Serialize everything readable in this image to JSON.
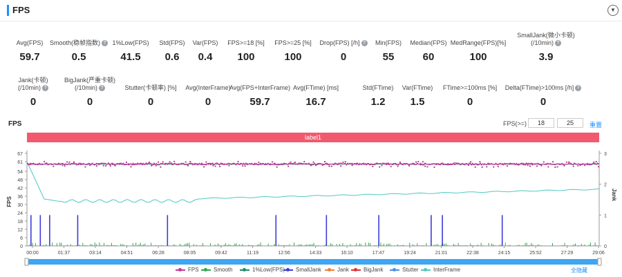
{
  "header": {
    "title": "FPS"
  },
  "metrics_row1": [
    {
      "label": "Avg(FPS)",
      "value": "59.7",
      "help": false
    },
    {
      "label": "Smooth(稳帧指数)",
      "value": "0.5",
      "help": true
    },
    {
      "label": "1%Low(FPS)",
      "value": "41.5",
      "help": false
    },
    {
      "label": "Std(FPS)",
      "value": "0.6",
      "help": false
    },
    {
      "label": "Var(FPS)",
      "value": "0.4",
      "help": false
    },
    {
      "label": "FPS>=18 [%]",
      "value": "100",
      "help": false
    },
    {
      "label": "FPS>=25 [%]",
      "value": "100",
      "help": false
    },
    {
      "label": "Drop(FPS) [/h]",
      "value": "0",
      "help": true
    },
    {
      "label": "Min(FPS)",
      "value": "55",
      "help": false
    },
    {
      "label": "Median(FPS)",
      "value": "60",
      "help": false
    },
    {
      "label": "MedRange(FPS)[%]",
      "value": "100",
      "help": false
    },
    {
      "label": "SmallJank(微小卡顿)",
      "label2": "(/10min)",
      "value": "3.9",
      "help": true
    }
  ],
  "metrics_row2": [
    {
      "label": "Jank(卡顿)",
      "label2": "(/10min)",
      "value": "0",
      "help": true
    },
    {
      "label": "BigJank(严重卡顿)",
      "label2": "(/10min)",
      "value": "0",
      "help": true
    },
    {
      "label": "Stutter(卡顿率) [%]",
      "value": "0",
      "help": false
    },
    {
      "label": "Avg(InterFrame)",
      "value": "0",
      "help": false
    },
    {
      "label": "Avg(FPS+InterFrame)",
      "value": "59.7",
      "help": false
    },
    {
      "label": "Avg(FTime) [ms]",
      "value": "16.7",
      "help": false
    },
    {
      "label": "Std(FTime)",
      "value": "1.2",
      "help": false
    },
    {
      "label": "Var(FTime)",
      "value": "1.5",
      "help": false
    },
    {
      "label": "FTime>=100ms [%]",
      "value": "0",
      "help": false
    },
    {
      "label": "Delta(FTime)>100ms [/h]",
      "value": "0",
      "help": true
    }
  ],
  "chart_controls": {
    "section_label": "FPS",
    "threshold_label": "FPS(>=)",
    "threshold_low": "18",
    "threshold_high": "25",
    "reset_label": "重置",
    "band_label": "label1",
    "hide_all_label": "全隐藏"
  },
  "chart_data": {
    "type": "line",
    "ylabel": "FPS",
    "ylabel_right": "Jank",
    "y_ticks": [
      0,
      6,
      12,
      18,
      24,
      30,
      36,
      42,
      48,
      54,
      61,
      67
    ],
    "y_right_ticks": [
      0,
      1,
      2,
      3
    ],
    "x_ticks": [
      "00:00",
      "01:37",
      "03:14",
      "04:51",
      "06:28",
      "08:05",
      "09:42",
      "11:19",
      "12:56",
      "14:33",
      "16:10",
      "17:47",
      "19:24",
      "21:01",
      "22:38",
      "24:15",
      "25:52",
      "27:29",
      "29:06"
    ],
    "fps_mean": 59.7,
    "fps_min": 55,
    "smalljank_times_min": [
      0.0,
      0.5,
      1.0,
      2.5,
      7.3,
      13.1,
      15.8,
      18.6,
      21.4,
      22.0,
      25.2
    ],
    "legend": [
      {
        "name": "FPS",
        "color": "#c0399a"
      },
      {
        "name": "Smooth",
        "color": "#2ea84a"
      },
      {
        "name": "1%Low(FPS)",
        "color": "#1e8a6a"
      },
      {
        "name": "SmallJank",
        "color": "#3b3bd8"
      },
      {
        "name": "Jank",
        "color": "#f08030"
      },
      {
        "name": "BigJank",
        "color": "#e03030"
      },
      {
        "name": "Stutter",
        "color": "#4a90e2"
      },
      {
        "name": "InterFrame",
        "color": "#4dc8c0"
      }
    ]
  }
}
